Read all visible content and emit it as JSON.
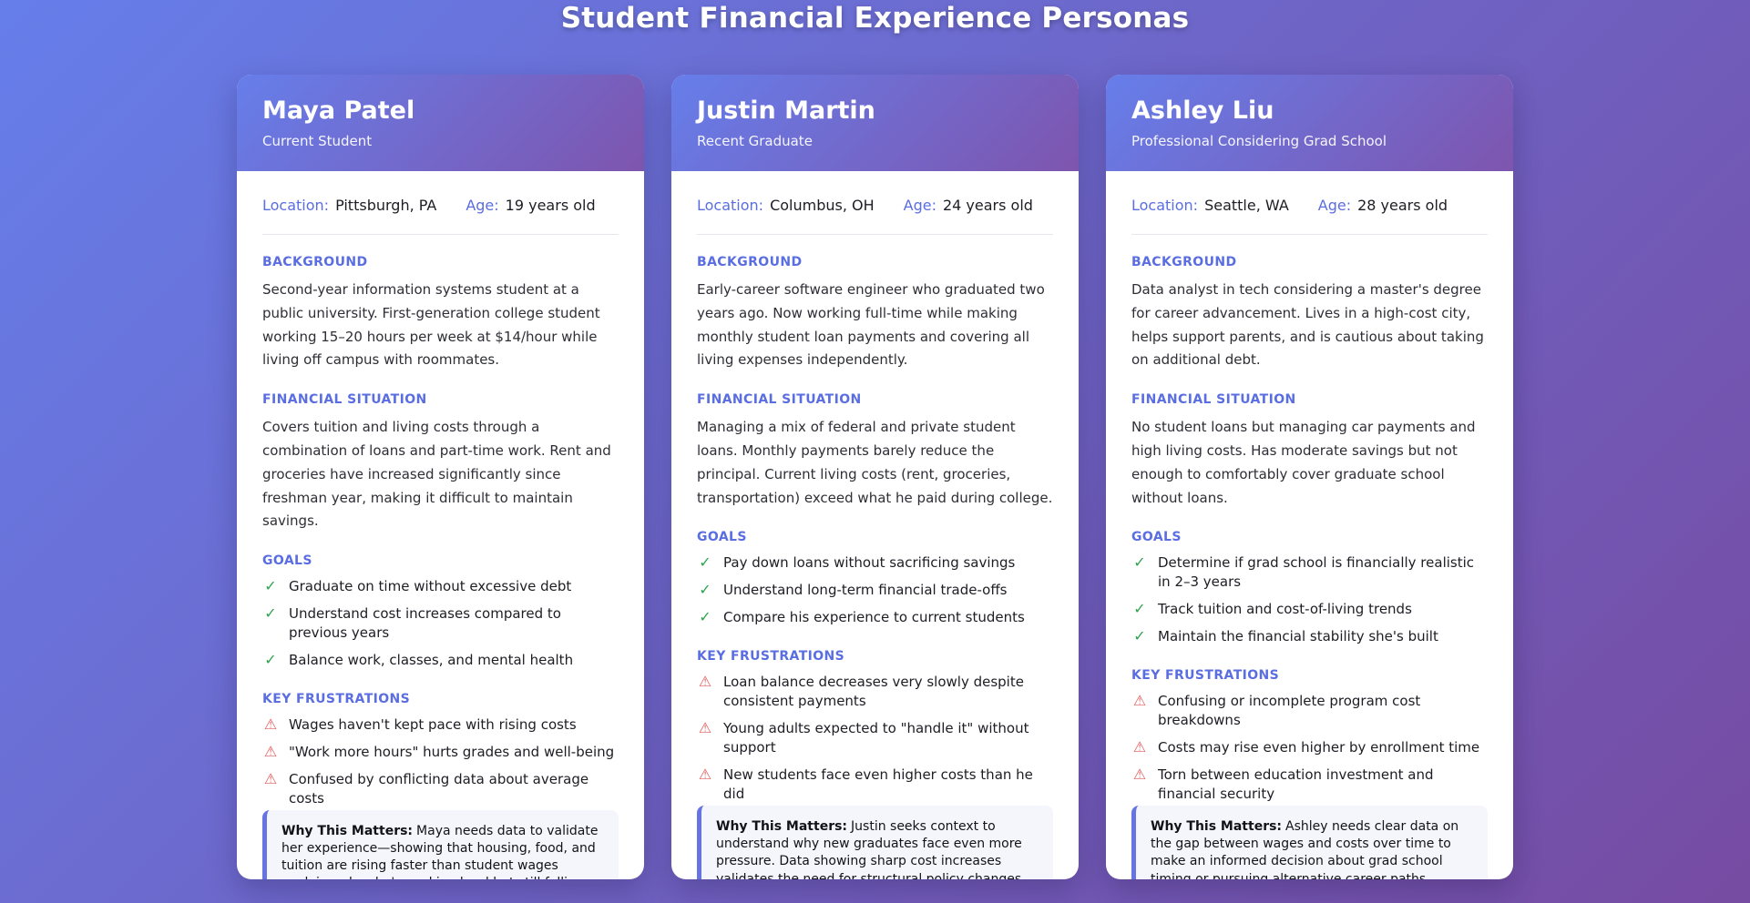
{
  "page_title": "Student Financial Experience Personas",
  "labels": {
    "location": "Location:",
    "age": "Age:",
    "background": "BACKGROUND",
    "financial": "FINANCIAL SITUATION",
    "goals": "GOALS",
    "frustrations": "KEY FRUSTRATIONS",
    "why_prefix": "Why This Matters:"
  },
  "icons": {
    "goal": "✓",
    "frustration": "⚠"
  },
  "colors": {
    "page_gradient_start": "#667eea",
    "page_gradient_end": "#764ba2",
    "accent_periwinkle": "#5a6ee1",
    "goal_green": "#2ea44f",
    "frustration_red": "#e25c5c",
    "card_background": "#ffffff",
    "why_box_background": "#f5f5fc"
  },
  "personas": [
    {
      "name": "Maya Patel",
      "role": "Current Student",
      "location": "Pittsburgh, PA",
      "age": "19 years old",
      "background": "Second-year information systems student at a public university. First-generation college student working 15–20 hours per week at $14/hour while living off campus with roommates.",
      "financial": "Covers tuition and living costs through a combination of loans and part-time work. Rent and groceries have increased significantly since freshman year, making it difficult to maintain savings.",
      "goals": [
        "Graduate on time without excessive debt",
        "Understand cost increases compared to previous years",
        "Balance work, classes, and mental health"
      ],
      "frustrations": [
        "Wages haven't kept pace with rising costs",
        "\"Work more hours\" hurts grades and well-being",
        "Confused by conflicting data about average costs"
      ],
      "why": "Maya needs data to validate her experience—showing that housing, food, and tuition are rising faster than student wages explains why she's working hard but still falling behind."
    },
    {
      "name": "Justin Martin",
      "role": "Recent Graduate",
      "location": "Columbus, OH",
      "age": "24 years old",
      "background": "Early-career software engineer who graduated two years ago. Now working full-time while making monthly student loan payments and covering all living expenses independently.",
      "financial": "Managing a mix of federal and private student loans. Monthly payments barely reduce the principal. Current living costs (rent, groceries, transportation) exceed what he paid during college.",
      "goals": [
        "Pay down loans without sacrificing savings",
        "Understand long-term financial trade-offs",
        "Compare his experience to current students"
      ],
      "frustrations": [
        "Loan balance decreases very slowly despite consistent payments",
        "Young adults expected to \"handle it\" without support",
        "New students face even higher costs than he did"
      ],
      "why": "Justin seeks context to understand why new graduates face even more pressure. Data showing sharp cost increases validates the need for structural policy changes."
    },
    {
      "name": "Ashley Liu",
      "role": "Professional Considering Grad School",
      "location": "Seattle, WA",
      "age": "28 years old",
      "background": "Data analyst in tech considering a master's degree for career advancement. Lives in a high-cost city, helps support parents, and is cautious about taking on additional debt.",
      "financial": "No student loans but managing car payments and high living costs. Has moderate savings but not enough to comfortably cover graduate school without loans.",
      "goals": [
        "Determine if grad school is financially realistic in 2–3 years",
        "Track tuition and cost-of-living trends",
        "Maintain the financial stability she's built"
      ],
      "frustrations": [
        "Confusing or incomplete program cost breakdowns",
        "Costs may rise even higher by enrollment time",
        "Torn between education investment and financial security"
      ],
      "why": "Ashley needs clear data on the gap between wages and costs over time to make an informed decision about grad school timing or pursuing alternative career paths."
    }
  ]
}
